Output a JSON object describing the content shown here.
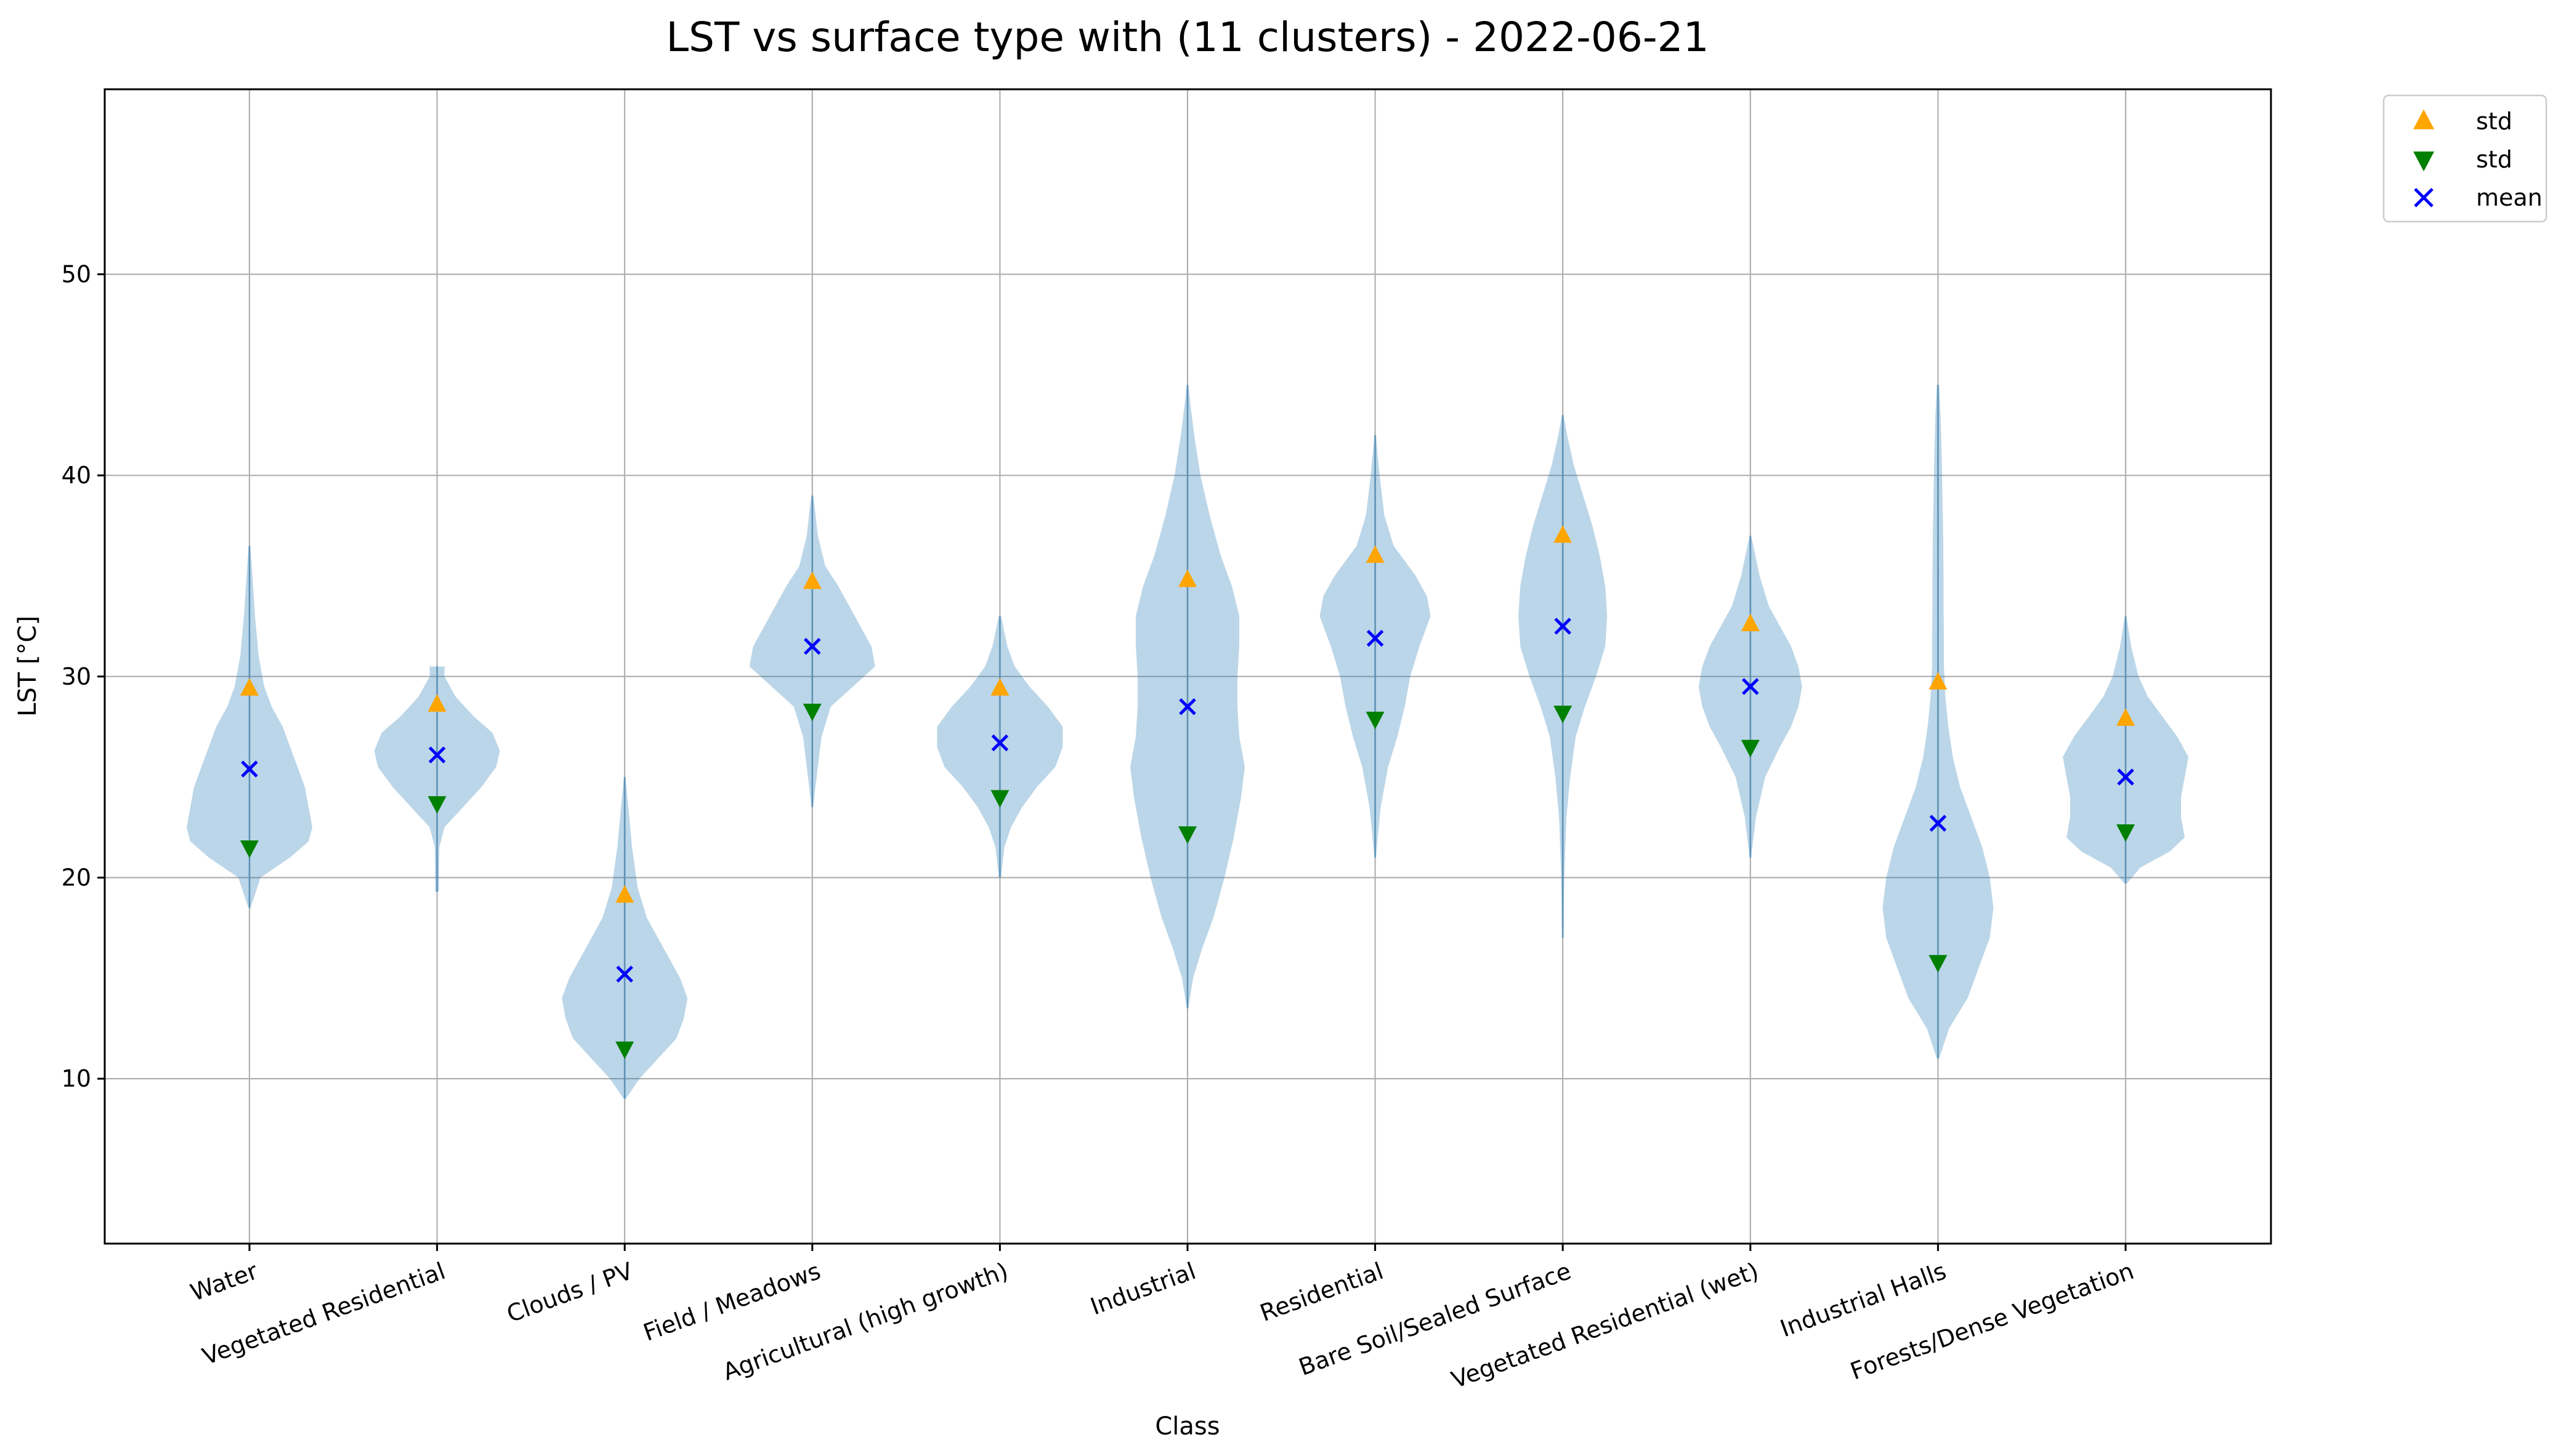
{
  "chart_data": {
    "type": "violin",
    "title": "LST vs surface type with (11 clusters) - 2022-06-21",
    "xlabel": "Class",
    "ylabel": "LST [°C]",
    "ylim": [
      1.8,
      59.2
    ],
    "yticks": [
      10,
      20,
      30,
      40,
      50
    ],
    "grid": true,
    "legend_position": "outside upper right",
    "categories": [
      "Water",
      "Vegetated Residential",
      "Clouds / PV",
      "Field / Meadows",
      "Agricultural (high growth)",
      "Industrial",
      "Residential",
      "Bare Soil/Sealed Surface",
      "Vegetated Residential (wet)",
      "Industrial Halls",
      "Forests/Dense Vegetation"
    ],
    "mean": [
      25.4,
      26.1,
      15.2,
      31.5,
      26.7,
      28.5,
      31.9,
      32.5,
      29.5,
      22.7,
      25.0
    ],
    "std_upper": [
      29.4,
      28.6,
      19.1,
      34.7,
      29.4,
      34.8,
      36.0,
      37.0,
      32.6,
      29.7,
      27.9
    ],
    "std_lower": [
      21.5,
      23.7,
      11.5,
      28.3,
      24.0,
      22.2,
      27.9,
      28.2,
      26.5,
      15.8,
      22.3
    ],
    "violins": [
      {
        "min": 18.5,
        "max": 36.5,
        "profile": [
          [
            18.5,
            0.3
          ],
          [
            20.0,
            3
          ],
          [
            21.0,
            11
          ],
          [
            21.8,
            16
          ],
          [
            22.5,
            17
          ],
          [
            23.5,
            16
          ],
          [
            24.5,
            15
          ],
          [
            25.5,
            13
          ],
          [
            26.5,
            11
          ],
          [
            27.5,
            9
          ],
          [
            28.5,
            6
          ],
          [
            29.5,
            4
          ],
          [
            31.0,
            2.5
          ],
          [
            33.0,
            1.5
          ],
          [
            35.0,
            0.8
          ],
          [
            36.5,
            0.2
          ]
        ]
      },
      {
        "min": 19.3,
        "max": 30.5,
        "profile": [
          [
            19.3,
            0.5
          ],
          [
            21.5,
            0.6
          ],
          [
            22.5,
            2
          ],
          [
            23.5,
            7
          ],
          [
            24.5,
            12
          ],
          [
            25.5,
            16
          ],
          [
            26.3,
            17
          ],
          [
            27.2,
            15
          ],
          [
            28.0,
            10
          ],
          [
            29.0,
            5
          ],
          [
            30.0,
            2
          ],
          [
            30.5,
            2
          ]
        ]
      },
      {
        "min": 9.0,
        "max": 25.0,
        "profile": [
          [
            9.0,
            0.3
          ],
          [
            10.0,
            4
          ],
          [
            11.0,
            9
          ],
          [
            12.0,
            14
          ],
          [
            13.0,
            16
          ],
          [
            14.0,
            17
          ],
          [
            15.0,
            15
          ],
          [
            16.0,
            12
          ],
          [
            17.0,
            9
          ],
          [
            18.0,
            6
          ],
          [
            19.5,
            3.5
          ],
          [
            21.5,
            2
          ],
          [
            23.5,
            1
          ],
          [
            25.0,
            0.2
          ]
        ]
      },
      {
        "min": 23.5,
        "max": 39.0,
        "profile": [
          [
            23.5,
            0.2
          ],
          [
            25.5,
            1.5
          ],
          [
            27.0,
            2.5
          ],
          [
            28.5,
            5
          ],
          [
            29.5,
            11
          ],
          [
            30.5,
            17
          ],
          [
            31.5,
            16
          ],
          [
            32.5,
            13
          ],
          [
            33.5,
            10
          ],
          [
            34.5,
            7
          ],
          [
            35.5,
            3.5
          ],
          [
            37.0,
            1.5
          ],
          [
            38.5,
            0.6
          ],
          [
            39.0,
            0.2
          ]
        ]
      },
      {
        "min": 20.0,
        "max": 33.0,
        "profile": [
          [
            20.0,
            0.3
          ],
          [
            21.5,
            1.2
          ],
          [
            22.5,
            3
          ],
          [
            23.5,
            6
          ],
          [
            24.5,
            10
          ],
          [
            25.5,
            15
          ],
          [
            26.5,
            17
          ],
          [
            27.5,
            17
          ],
          [
            28.5,
            13
          ],
          [
            29.5,
            8
          ],
          [
            30.5,
            4
          ],
          [
            31.5,
            2
          ],
          [
            33.0,
            0.3
          ]
        ]
      },
      {
        "min": 13.5,
        "max": 44.5,
        "profile": [
          [
            13.5,
            0.2
          ],
          [
            15.0,
            1.5
          ],
          [
            16.5,
            4
          ],
          [
            18.0,
            7
          ],
          [
            20.0,
            10
          ],
          [
            22.0,
            12.5
          ],
          [
            24.0,
            14.5
          ],
          [
            25.5,
            15.5
          ],
          [
            27.0,
            14
          ],
          [
            28.5,
            13.5
          ],
          [
            30.0,
            13.5
          ],
          [
            31.5,
            14
          ],
          [
            33.0,
            14
          ],
          [
            34.5,
            12
          ],
          [
            36.0,
            9
          ],
          [
            38.0,
            6
          ],
          [
            40.0,
            3.5
          ],
          [
            42.0,
            1.8
          ],
          [
            43.5,
            0.8
          ],
          [
            44.5,
            0.2
          ]
        ]
      },
      {
        "min": 21.0,
        "max": 42.0,
        "profile": [
          [
            21.0,
            0.2
          ],
          [
            23.5,
            1.5
          ],
          [
            25.5,
            3.5
          ],
          [
            27.0,
            6
          ],
          [
            28.5,
            8
          ],
          [
            30.0,
            9.5
          ],
          [
            31.5,
            12
          ],
          [
            33.0,
            15
          ],
          [
            34.0,
            14
          ],
          [
            35.0,
            11
          ],
          [
            36.5,
            5
          ],
          [
            38.0,
            2.5
          ],
          [
            40.0,
            1.2
          ],
          [
            42.0,
            0.2
          ]
        ]
      },
      {
        "min": 17.0,
        "max": 43.0,
        "profile": [
          [
            17.0,
            0.2
          ],
          [
            20.0,
            0.4
          ],
          [
            23.0,
            1
          ],
          [
            25.0,
            2
          ],
          [
            27.0,
            3.5
          ],
          [
            28.5,
            6
          ],
          [
            30.0,
            9
          ],
          [
            31.5,
            11.5
          ],
          [
            33.0,
            12
          ],
          [
            34.5,
            11.5
          ],
          [
            36.0,
            10
          ],
          [
            37.5,
            8
          ],
          [
            39.0,
            5.5
          ],
          [
            40.5,
            3
          ],
          [
            42.0,
            1.2
          ],
          [
            43.0,
            0.2
          ]
        ]
      },
      {
        "min": 21.0,
        "max": 37.0,
        "profile": [
          [
            21.0,
            0.2
          ],
          [
            23.0,
            1.5
          ],
          [
            25.0,
            4
          ],
          [
            26.5,
            8
          ],
          [
            27.5,
            11
          ],
          [
            28.5,
            13
          ],
          [
            29.5,
            14
          ],
          [
            30.5,
            13
          ],
          [
            31.5,
            11
          ],
          [
            32.5,
            8
          ],
          [
            33.5,
            5
          ],
          [
            35.0,
            2.5
          ],
          [
            36.5,
            0.8
          ],
          [
            37.0,
            0.2
          ]
        ]
      },
      {
        "min": 11.0,
        "max": 44.5,
        "profile": [
          [
            11.0,
            0.3
          ],
          [
            12.5,
            3
          ],
          [
            14.0,
            8
          ],
          [
            15.5,
            11
          ],
          [
            17.0,
            14
          ],
          [
            18.5,
            15
          ],
          [
            20.0,
            14
          ],
          [
            21.5,
            12
          ],
          [
            23.0,
            9
          ],
          [
            24.5,
            6
          ],
          [
            26.0,
            4
          ],
          [
            27.5,
            2.8
          ],
          [
            29.0,
            2
          ],
          [
            30.5,
            1.6
          ],
          [
            32.0,
            1.6
          ],
          [
            33.5,
            1.5
          ],
          [
            35.0,
            1.5
          ],
          [
            37.0,
            1.4
          ],
          [
            39.0,
            1.2
          ],
          [
            41.0,
            1
          ],
          [
            43.0,
            0.7
          ],
          [
            44.5,
            0.3
          ]
        ]
      },
      {
        "min": 19.7,
        "max": 33.0,
        "profile": [
          [
            19.7,
            0.3
          ],
          [
            20.5,
            4
          ],
          [
            21.3,
            12
          ],
          [
            22.0,
            16
          ],
          [
            23.0,
            15
          ],
          [
            24.0,
            15
          ],
          [
            25.0,
            16
          ],
          [
            26.0,
            17
          ],
          [
            27.0,
            14
          ],
          [
            28.0,
            10
          ],
          [
            29.0,
            6
          ],
          [
            30.0,
            3.5
          ],
          [
            31.5,
            1.5
          ],
          [
            33.0,
            0.2
          ]
        ]
      }
    ],
    "legend": [
      {
        "label": "std",
        "marker": "triangle-up",
        "color": "#FFA500"
      },
      {
        "label": "std",
        "marker": "triangle-down",
        "color": "#008000"
      },
      {
        "label": "mean",
        "marker": "x",
        "color": "#0000FF"
      }
    ],
    "colors": {
      "violin_fill": "#1f77b4",
      "std_upper": "#FFA500",
      "std_lower": "#008000",
      "mean": "#0000FF"
    }
  }
}
